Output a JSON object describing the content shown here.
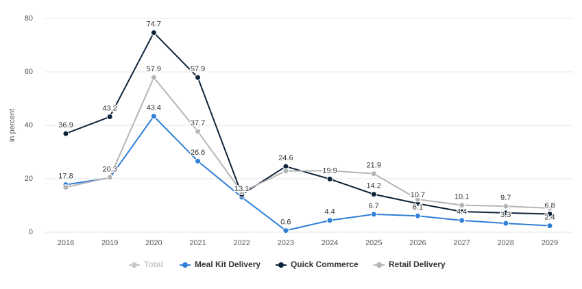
{
  "chart_data": {
    "type": "line",
    "y_label": "in percent",
    "categories": [
      "2018",
      "2019",
      "2020",
      "2021",
      "2022",
      "2023",
      "2024",
      "2025",
      "2026",
      "2027",
      "2028",
      "2029"
    ],
    "hidden_series": [
      {
        "name": "Total",
        "color": "#c8c8c8"
      }
    ],
    "series": [
      {
        "name": "Meal Kit Delivery",
        "color": "#2f7ed8",
        "values": [
          17.8,
          20.3,
          43.4,
          26.6,
          13.1,
          0.6,
          4.4,
          6.7,
          6.1,
          4.4,
          3.3,
          2.4
        ],
        "value_labels": [
          "17.8",
          "20.3",
          "43.4",
          "26.6",
          "13.1",
          "0.6",
          "4.4",
          "6.7",
          "6.1",
          "4.4",
          "3.3",
          "2.4"
        ]
      },
      {
        "name": "Quick Commerce",
        "color": "#0d233a",
        "values": [
          36.9,
          43.2,
          74.7,
          57.9,
          14.1,
          24.6,
          19.9,
          14.2,
          10.7,
          7.7,
          7.2,
          6.8
        ],
        "value_labels": [
          "36.9",
          "43.2",
          "74.7",
          "57.9",
          null,
          "24.6",
          "19.9",
          "14.2",
          "10.7",
          null,
          null,
          "6.8"
        ]
      },
      {
        "name": "Retail Delivery",
        "color": "#b5b5b5",
        "values": [
          16.8,
          20.5,
          57.9,
          37.7,
          15.0,
          22.9,
          23.0,
          21.9,
          12.3,
          10.1,
          9.7,
          9.0
        ],
        "value_labels": [
          null,
          null,
          "57.9",
          "37.7",
          null,
          null,
          null,
          "21.9",
          null,
          "10.1",
          "9.7",
          null
        ]
      }
    ],
    "ylim": [
      0,
      80
    ],
    "yticks": [
      0,
      20,
      40,
      60,
      80
    ],
    "grid": true
  }
}
